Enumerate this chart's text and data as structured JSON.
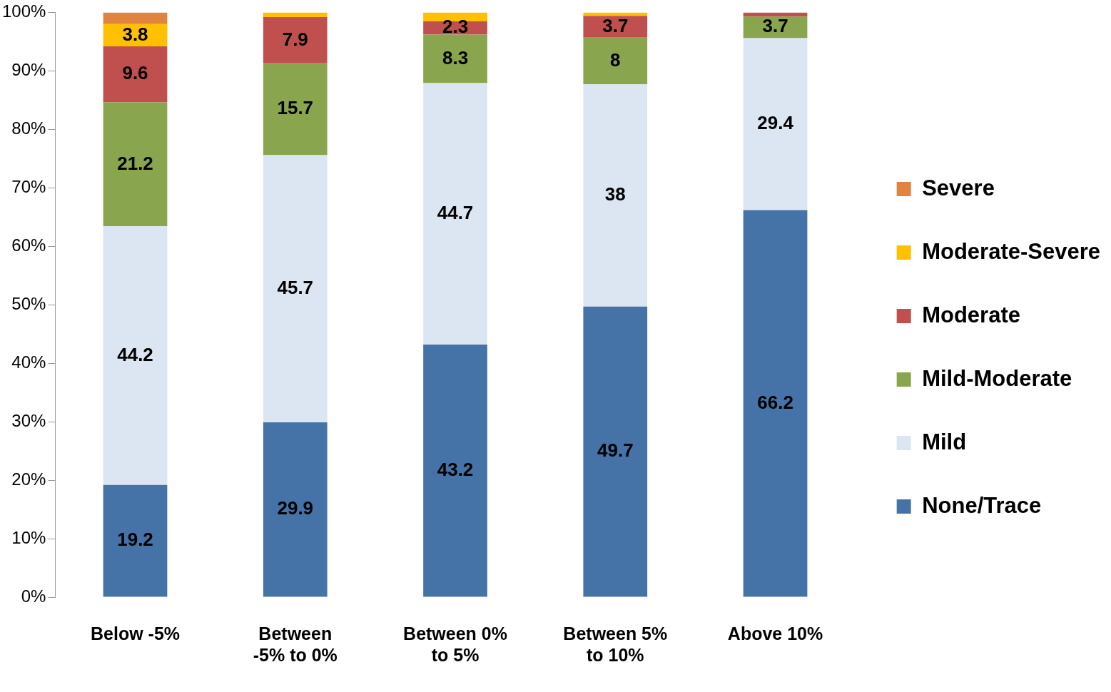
{
  "chart_data": {
    "type": "bar",
    "stacked": true,
    "legend": "right",
    "grid": false,
    "categories": [
      "Below -5%",
      "Between -5% to 0%",
      "Between 0% to 5%",
      "Between 5% to 10%",
      "Above 10%"
    ],
    "ylim": [
      0,
      100
    ],
    "yticks": [
      {
        "value": 0,
        "label": "0%"
      },
      {
        "value": 10,
        "label": "10%"
      },
      {
        "value": 20,
        "label": "20%"
      },
      {
        "value": 30,
        "label": "30%"
      },
      {
        "value": 40,
        "label": "40%"
      },
      {
        "value": 50,
        "label": "50%"
      },
      {
        "value": 60,
        "label": "60%"
      },
      {
        "value": 70,
        "label": "70%"
      },
      {
        "value": 80,
        "label": "80%"
      },
      {
        "value": 90,
        "label": "90%"
      },
      {
        "value": 100,
        "label": "100%"
      }
    ],
    "series": [
      {
        "name": "None/Trace",
        "color": "#4572a7",
        "values": [
          19.2,
          29.9,
          43.2,
          49.7,
          66.2
        ],
        "value_labels": [
          "19.2",
          "29.9",
          "43.2",
          "49.7",
          "66.2"
        ]
      },
      {
        "name": "Mild",
        "color": "#dce6f2",
        "values": [
          44.2,
          45.7,
          44.7,
          38,
          29.4
        ],
        "value_labels": [
          "44.2",
          "45.7",
          "44.7",
          "38",
          "29.4"
        ]
      },
      {
        "name": "Mild-Moderate",
        "color": "#89a54e",
        "values": [
          21.2,
          15.7,
          8.3,
          8,
          3.7
        ],
        "value_labels": [
          "21.2",
          "15.7",
          "8.3",
          "8",
          "3.7"
        ]
      },
      {
        "name": "Moderate",
        "color": "#c0504d",
        "values": [
          9.6,
          7.9,
          2.3,
          3.7,
          0.7
        ],
        "value_labels": [
          "9.6",
          "7.9",
          "2.3",
          "3.7",
          null
        ]
      },
      {
        "name": "Moderate-Severe",
        "color": "#ffc000",
        "values": [
          3.8,
          0.8,
          1.5,
          0.6,
          0
        ],
        "value_labels": [
          "3.8",
          null,
          null,
          null,
          null
        ]
      },
      {
        "name": "Severe",
        "color": "#e0843f",
        "values": [
          2.0,
          0,
          0,
          0,
          0
        ],
        "value_labels": [
          null,
          null,
          null,
          null,
          null
        ]
      }
    ]
  }
}
